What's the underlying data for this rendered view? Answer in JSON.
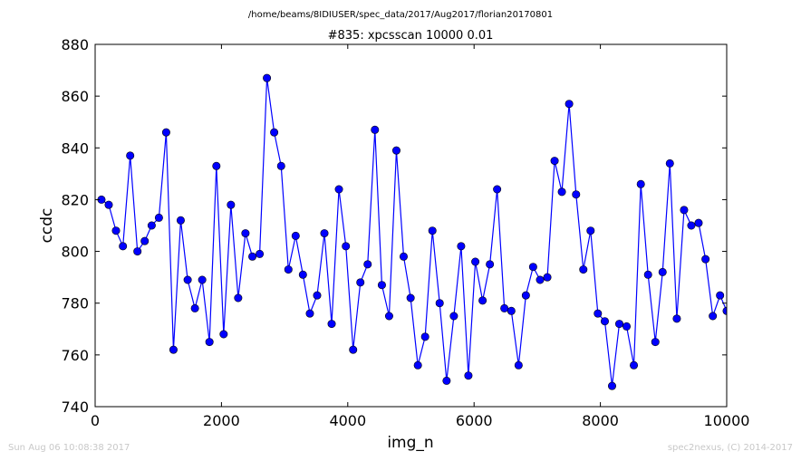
{
  "figure": {
    "suptitle": "/home/beams/8IDIUSER/spec_data/2017/Aug2017/florian20170801",
    "footer_left": "Sun Aug 06 10:08:38 2017",
    "footer_right": "spec2nexus, (C) 2014-2017"
  },
  "chart_data": {
    "type": "line",
    "title": "#835: xpcsscan 10000 0.01",
    "xlabel": "img_n",
    "ylabel": "ccdc",
    "xlim": [
      0,
      10000
    ],
    "ylim": [
      740,
      880
    ],
    "xticks": [
      0,
      2000,
      4000,
      6000,
      8000,
      10000
    ],
    "yticks": [
      740,
      760,
      780,
      800,
      820,
      840,
      860,
      880
    ],
    "grid": false,
    "marker": "circle",
    "line_color": "#0000ff",
    "marker_color": "#0000ff",
    "series": [
      {
        "x": [
          100,
          215,
          330,
          440,
          555,
          670,
          785,
          895,
          1010,
          1125,
          1240,
          1355,
          1465,
          1580,
          1695,
          1810,
          1920,
          2035,
          2150,
          2265,
          2380,
          2490,
          2605,
          2720,
          2835,
          2945,
          3060,
          3175,
          3290,
          3400,
          3515,
          3630,
          3745,
          3860,
          3970,
          4085,
          4200,
          4315,
          4430,
          4540,
          4655,
          4770,
          4885,
          4995,
          5110,
          5225,
          5340,
          5455,
          5565,
          5680,
          5795,
          5910,
          6020,
          6135,
          6250,
          6365,
          6480,
          6590,
          6705,
          6820,
          6935,
          7045,
          7160,
          7275,
          7390,
          7505,
          7615,
          7730,
          7845,
          7960,
          8070,
          8185,
          8300,
          8415,
          8530,
          8640,
          8755,
          8870,
          8985,
          9100,
          9210,
          9325,
          9440,
          9555,
          9665,
          9780,
          9895,
          10000
        ],
        "values": [
          820,
          818,
          808,
          802,
          837,
          800,
          804,
          810,
          813,
          846,
          762,
          812,
          789,
          778,
          789,
          765,
          833,
          768,
          818,
          782,
          807,
          798,
          799,
          867,
          846,
          833,
          793,
          806,
          791,
          776,
          783,
          807,
          772,
          824,
          802,
          762,
          788,
          795,
          847,
          787,
          775,
          839,
          798,
          782,
          756,
          767,
          808,
          780,
          750,
          775,
          802,
          752,
          796,
          781,
          795,
          824,
          778,
          777,
          756,
          783,
          794,
          789,
          790,
          835,
          823,
          857,
          822,
          793,
          808,
          776,
          773,
          748,
          772,
          771,
          756,
          826,
          791,
          765,
          792,
          834,
          774,
          816,
          810,
          811,
          797,
          775,
          783,
          777
        ]
      }
    ]
  }
}
